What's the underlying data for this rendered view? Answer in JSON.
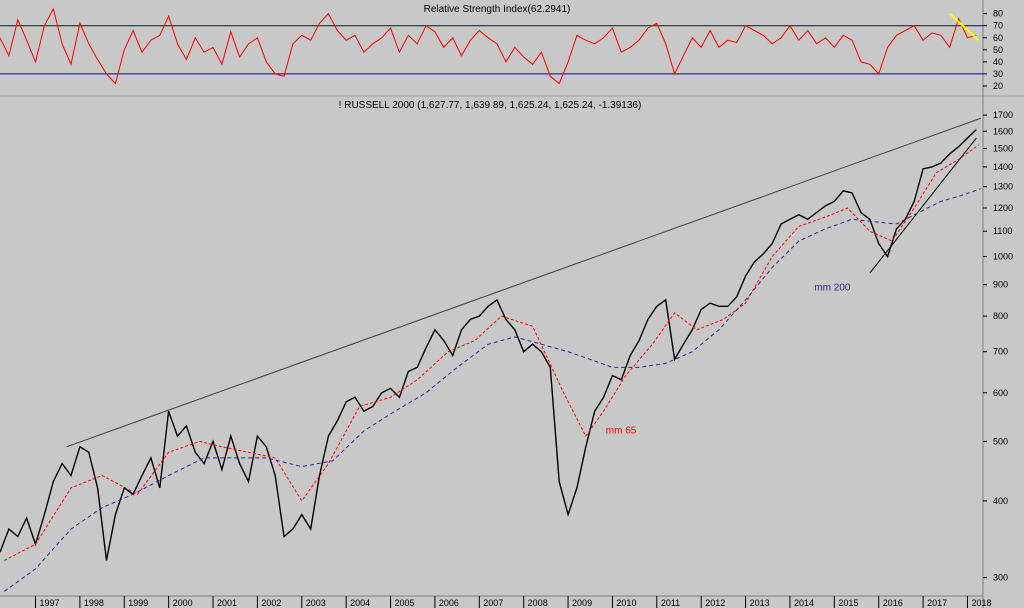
{
  "chart_data": [
    {
      "type": "line",
      "title": "Relative Strength Index(62.2941)",
      "y_ticks": [
        20,
        30,
        40,
        50,
        60,
        70,
        80
      ],
      "ylim": [
        15,
        88
      ],
      "levels": [
        30,
        70
      ],
      "series": [
        {
          "name": "",
          "color": "#ff0000",
          "x": [
            1996.2,
            1996.4,
            1996.6,
            1996.8,
            1997.0,
            1997.2,
            1997.4,
            1997.6,
            1997.8,
            1998.0,
            1998.2,
            1998.4,
            1998.6,
            1998.8,
            1999.0,
            1999.2,
            1999.4,
            1999.6,
            1999.8,
            2000.0,
            2000.2,
            2000.4,
            2000.6,
            2000.8,
            2001.0,
            2001.2,
            2001.4,
            2001.6,
            2001.8,
            2002.0,
            2002.2,
            2002.4,
            2002.6,
            2002.8,
            2003.0,
            2003.2,
            2003.4,
            2003.6,
            2003.8,
            2004.0,
            2004.2,
            2004.4,
            2004.6,
            2004.8,
            2005.0,
            2005.2,
            2005.4,
            2005.6,
            2005.8,
            2006.0,
            2006.2,
            2006.4,
            2006.6,
            2006.8,
            2007.0,
            2007.2,
            2007.4,
            2007.6,
            2007.8,
            2008.0,
            2008.2,
            2008.4,
            2008.6,
            2008.8,
            2009.0,
            2009.2,
            2009.4,
            2009.6,
            2009.8,
            2010.0,
            2010.2,
            2010.4,
            2010.6,
            2010.8,
            2011.0,
            2011.2,
            2011.4,
            2011.6,
            2011.8,
            2012.0,
            2012.2,
            2012.4,
            2012.6,
            2012.8,
            2013.0,
            2013.2,
            2013.4,
            2013.6,
            2013.8,
            2014.0,
            2014.2,
            2014.4,
            2014.6,
            2014.8,
            2015.0,
            2015.2,
            2015.4,
            2015.6,
            2015.8,
            2016.0,
            2016.2,
            2016.4,
            2016.6,
            2016.8,
            2017.0,
            2017.2,
            2017.4,
            2017.6,
            2017.8,
            2018.0,
            2018.2
          ],
          "values": [
            60,
            45,
            75,
            58,
            40,
            70,
            84,
            55,
            38,
            72,
            55,
            42,
            30,
            22,
            50,
            66,
            48,
            58,
            62,
            78,
            55,
            42,
            60,
            48,
            52,
            38,
            65,
            44,
            55,
            60,
            40,
            30,
            28,
            55,
            62,
            58,
            72,
            80,
            66,
            58,
            62,
            48,
            55,
            60,
            68,
            48,
            62,
            55,
            70,
            65,
            52,
            60,
            45,
            58,
            66,
            60,
            55,
            40,
            52,
            44,
            38,
            48,
            28,
            22,
            40,
            62,
            58,
            55,
            60,
            68,
            48,
            52,
            58,
            68,
            72,
            55,
            30,
            45,
            60,
            52,
            66,
            52,
            58,
            56,
            70,
            66,
            62,
            55,
            60,
            70,
            58,
            66,
            55,
            60,
            52,
            62,
            58,
            40,
            38,
            30,
            52,
            62,
            66,
            70,
            58,
            64,
            62,
            52,
            76,
            60,
            62
          ]
        }
      ],
      "trendline": {
        "x": [
          2017.6,
          2018.25
        ],
        "y": [
          80,
          58
        ],
        "color": "#ffff00"
      }
    },
    {
      "type": "line",
      "title": "! RUSSELL 2000 (1,627.77, 1,639.89, 1,625.24, 1,625.24, -1.39136)",
      "x_ticks": [
        "1997",
        "1998",
        "1999",
        "2000",
        "2001",
        "2002",
        "2003",
        "2004",
        "2005",
        "2006",
        "2007",
        "2008",
        "2009",
        "2010",
        "2011",
        "2012",
        "2013",
        "2014",
        "2015",
        "2016",
        "2017",
        "2018"
      ],
      "y_ticks": [
        300,
        400,
        500,
        600,
        700,
        800,
        900,
        1000,
        1100,
        1200,
        1300,
        1400,
        1500,
        1600,
        1700
      ],
      "y_scale": "log",
      "xlim": [
        1996.2,
        2018.35
      ],
      "ylim": [
        280,
        1720
      ],
      "series": [
        {
          "name": "",
          "color": "#000000",
          "x": [
            1996.2,
            1996.4,
            1996.6,
            1996.8,
            1997.0,
            1997.2,
            1997.4,
            1997.6,
            1997.8,
            1998.0,
            1998.2,
            1998.4,
            1998.6,
            1998.8,
            1999.0,
            1999.2,
            1999.4,
            1999.6,
            1999.8,
            2000.0,
            2000.2,
            2000.4,
            2000.6,
            2000.8,
            2001.0,
            2001.2,
            2001.4,
            2001.6,
            2001.8,
            2002.0,
            2002.2,
            2002.4,
            2002.6,
            2002.8,
            2003.0,
            2003.2,
            2003.4,
            2003.6,
            2003.8,
            2004.0,
            2004.2,
            2004.4,
            2004.6,
            2004.8,
            2005.0,
            2005.2,
            2005.4,
            2005.6,
            2005.8,
            2006.0,
            2006.2,
            2006.4,
            2006.6,
            2006.8,
            2007.0,
            2007.2,
            2007.4,
            2007.6,
            2007.8,
            2008.0,
            2008.2,
            2008.4,
            2008.6,
            2008.8,
            2009.0,
            2009.2,
            2009.4,
            2009.6,
            2009.8,
            2010.0,
            2010.2,
            2010.4,
            2010.6,
            2010.8,
            2011.0,
            2011.2,
            2011.4,
            2011.6,
            2011.8,
            2012.0,
            2012.2,
            2012.4,
            2012.6,
            2012.8,
            2013.0,
            2013.2,
            2013.4,
            2013.6,
            2013.8,
            2014.0,
            2014.2,
            2014.4,
            2014.6,
            2014.8,
            2015.0,
            2015.2,
            2015.4,
            2015.6,
            2015.8,
            2016.0,
            2016.2,
            2016.4,
            2016.6,
            2016.8,
            2017.0,
            2017.2,
            2017.4,
            2017.6,
            2017.8,
            2018.0,
            2018.2
          ],
          "values": [
            330,
            360,
            350,
            375,
            340,
            380,
            430,
            460,
            440,
            490,
            480,
            420,
            320,
            380,
            420,
            410,
            440,
            470,
            420,
            560,
            510,
            530,
            480,
            460,
            500,
            450,
            510,
            460,
            430,
            510,
            490,
            440,
            350,
            360,
            380,
            360,
            440,
            510,
            540,
            580,
            590,
            560,
            570,
            600,
            610,
            590,
            650,
            660,
            710,
            760,
            730,
            690,
            760,
            790,
            800,
            830,
            850,
            790,
            760,
            700,
            720,
            700,
            660,
            430,
            380,
            420,
            490,
            560,
            590,
            640,
            630,
            690,
            730,
            790,
            830,
            850,
            680,
            720,
            760,
            820,
            840,
            830,
            830,
            860,
            930,
            980,
            1010,
            1050,
            1130,
            1150,
            1170,
            1150,
            1180,
            1210,
            1230,
            1280,
            1270,
            1180,
            1150,
            1050,
            1000,
            1110,
            1150,
            1230,
            1390,
            1400,
            1420,
            1470,
            1510,
            1560,
            1610
          ]
        },
        {
          "name": "mm 65",
          "color": "#ff0000",
          "x": [
            1996.3,
            1997.0,
            1997.8,
            1998.5,
            1999.3,
            2000.0,
            2000.7,
            2001.2,
            2001.8,
            2002.4,
            2003.0,
            2003.6,
            2004.3,
            2005.0,
            2005.6,
            2006.3,
            2006.9,
            2007.5,
            2008.2,
            2008.9,
            2009.4,
            2009.8,
            2010.3,
            2010.9,
            2011.4,
            2011.9,
            2012.5,
            2013.0,
            2013.6,
            2014.2,
            2014.8,
            2015.3,
            2015.8,
            2016.3,
            2016.8,
            2017.3,
            2017.8,
            2018.25
          ],
          "values": [
            320,
            340,
            420,
            440,
            410,
            480,
            500,
            490,
            480,
            470,
            400,
            460,
            570,
            590,
            630,
            700,
            730,
            800,
            770,
            600,
            510,
            560,
            640,
            720,
            810,
            760,
            790,
            840,
            1000,
            1120,
            1160,
            1200,
            1100,
            1060,
            1200,
            1370,
            1440,
            1520
          ]
        },
        {
          "name": "mm 200",
          "color": "#3a1f8a",
          "x": [
            1996.3,
            1997.0,
            1997.8,
            1998.5,
            1999.2,
            2000.0,
            2000.8,
            2001.5,
            2002.2,
            2003.0,
            2003.7,
            2004.4,
            2005.1,
            2005.8,
            2006.5,
            2007.2,
            2007.8,
            2008.4,
            2009.0,
            2009.5,
            2010.0,
            2010.6,
            2011.2,
            2011.8,
            2012.4,
            2013.0,
            2013.6,
            2014.2,
            2014.8,
            2015.4,
            2015.9,
            2016.4,
            2016.9,
            2017.4,
            2017.9,
            2018.3
          ],
          "values": [
            285,
            310,
            360,
            390,
            410,
            440,
            470,
            470,
            470,
            455,
            465,
            520,
            560,
            600,
            660,
            720,
            740,
            720,
            700,
            680,
            660,
            660,
            670,
            700,
            760,
            850,
            960,
            1060,
            1110,
            1150,
            1140,
            1130,
            1180,
            1230,
            1260,
            1290
          ]
        }
      ],
      "trendlines": [
        {
          "x": [
            1997.7,
            2018.3
          ],
          "y": [
            490,
            1680
          ],
          "color": "#404040"
        },
        {
          "x": [
            2015.8,
            2018.2
          ],
          "y": [
            940,
            1560
          ],
          "color": "#000000"
        }
      ],
      "annotations": [
        {
          "text": "mm 65",
          "x": 2009.85,
          "y": 515,
          "color": "#ff0000"
        },
        {
          "text": "mm 200",
          "x": 2014.55,
          "y": 880,
          "color": "#3a1f8a"
        }
      ]
    }
  ]
}
